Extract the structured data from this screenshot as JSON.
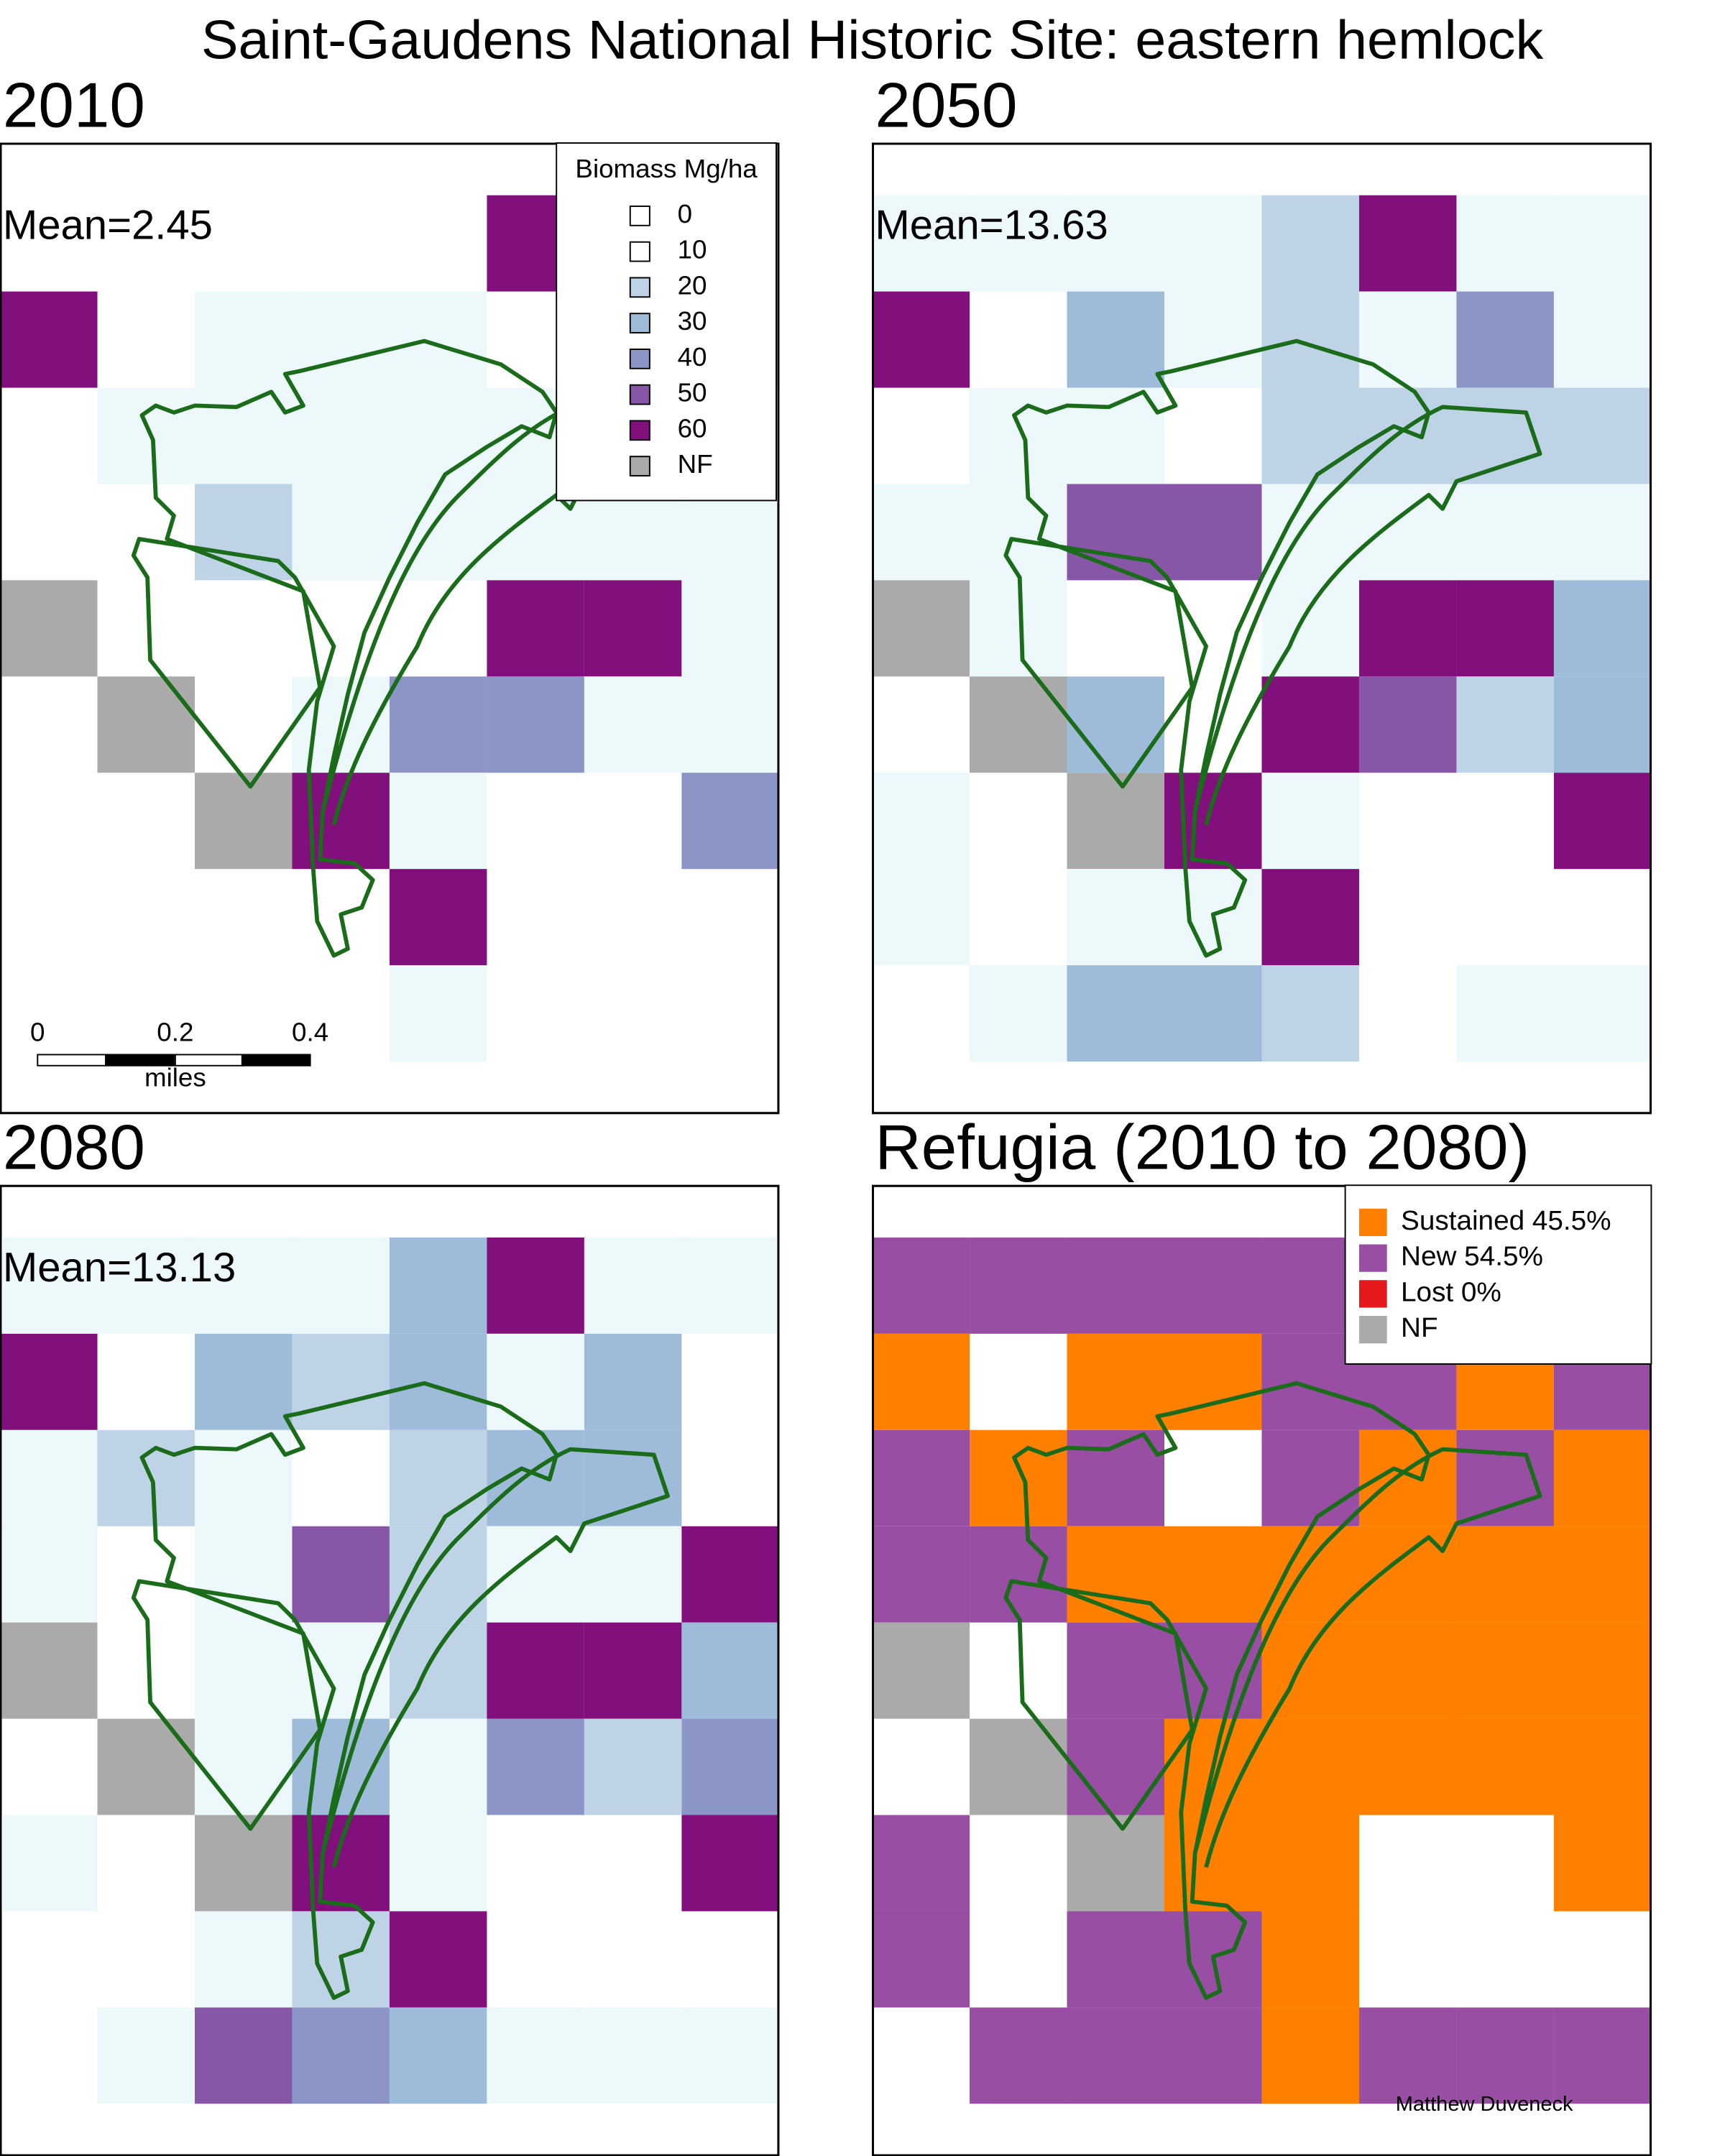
{
  "title": "Saint-Gaudens National Historic Site: eastern hemlock",
  "panels": [
    {
      "title": "2010",
      "mean": "Mean=2.45"
    },
    {
      "title": "2050",
      "mean": "Mean=13.63"
    },
    {
      "title": "2080",
      "mean": "Mean=13.13"
    },
    {
      "title": "Refugia (2010 to 2080)"
    }
  ],
  "biomass_legend": {
    "title": "Biomass Mg/ha",
    "items": [
      {
        "label": "0",
        "color": "#ffffff"
      },
      {
        "label": "10",
        "color": "#ffffff"
      },
      {
        "label": "20",
        "color": "#bfd3e6"
      },
      {
        "label": "30",
        "color": "#9ebcda"
      },
      {
        "label": "40",
        "color": "#8c96c6"
      },
      {
        "label": "50",
        "color": "#8856a7"
      },
      {
        "label": "60",
        "color": "#810f7c"
      },
      {
        "label": "NF",
        "color": "#aaaaaa"
      }
    ]
  },
  "refugia_legend": {
    "items": [
      {
        "label": "Sustained 45.5%",
        "color": "#ff7f00"
      },
      {
        "label": "New 54.5%",
        "color": "#984ea3"
      },
      {
        "label": "Lost 0%",
        "color": "#e41a1c"
      },
      {
        "label": "NF",
        "color": "#aaaaaa"
      }
    ]
  },
  "scale_bar": {
    "labels": [
      "0",
      "0.2",
      "0.4"
    ],
    "unit": "miles"
  },
  "credit": "Matthew Duveneck"
}
